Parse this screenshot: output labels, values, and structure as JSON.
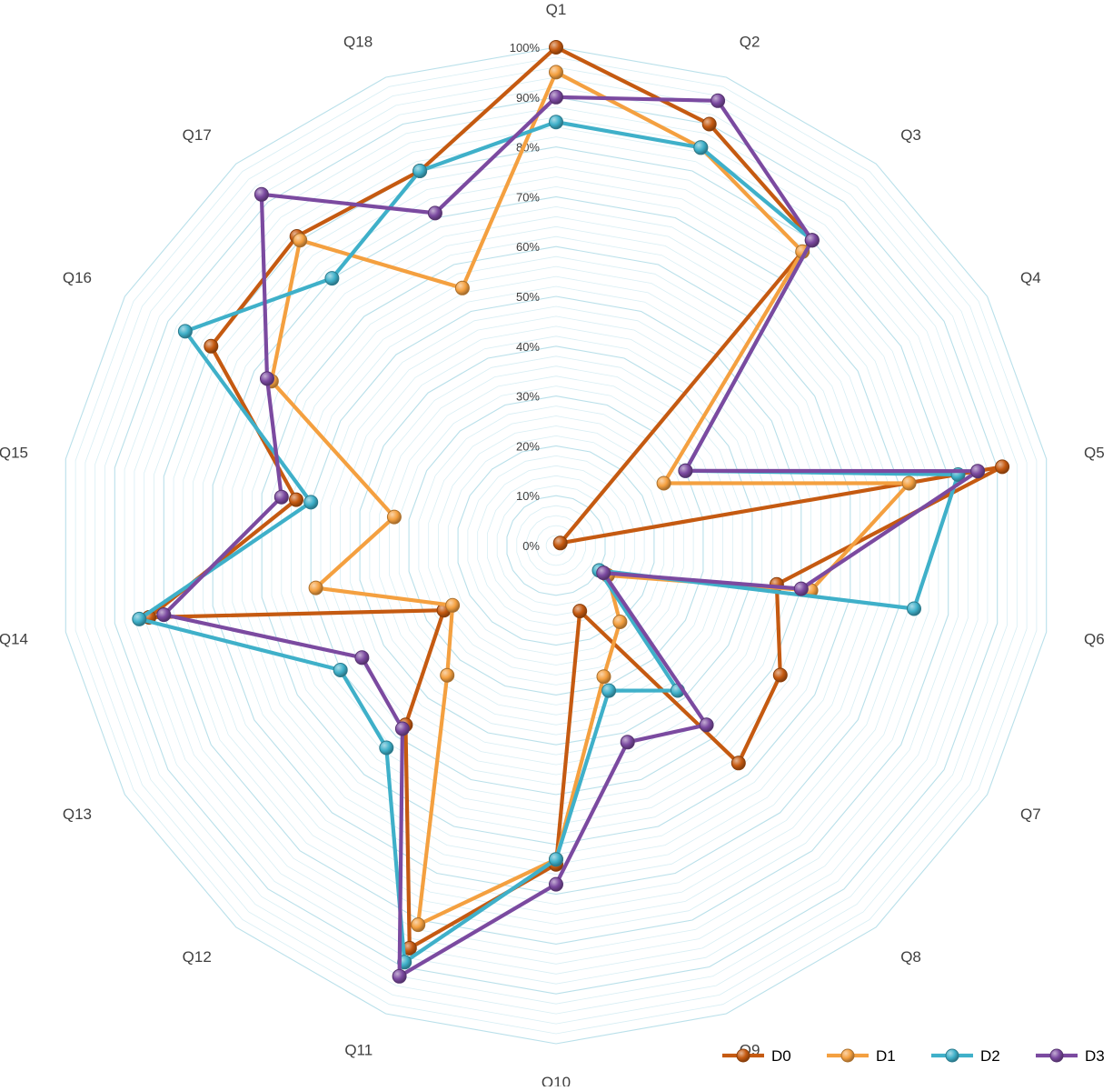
{
  "chart_data": {
    "type": "radar",
    "categories": [
      "Q1",
      "Q2",
      "Q3",
      "Q4",
      "Q5",
      "Q6",
      "Q7",
      "Q8",
      "Q9",
      "Q10",
      "Q11",
      "Q12",
      "Q13",
      "Q14",
      "Q15",
      "Q16",
      "Q17",
      "Q18"
    ],
    "ticks": [
      "0%",
      "10%",
      "20%",
      "30%",
      "40%",
      "50%",
      "60%",
      "70%",
      "80%",
      "90%",
      "100%"
    ],
    "ylim": [
      0,
      100
    ],
    "minor_grid_step": 2,
    "grid": true,
    "legend_position": "bottom-right",
    "series": [
      {
        "name": "D0",
        "color": "#c55a11",
        "values": [
          100,
          90,
          80,
          1,
          91,
          45,
          52,
          57,
          14,
          64,
          86,
          47,
          26,
          83,
          53,
          80,
          81,
          80
        ]
      },
      {
        "name": "D1",
        "color": "#f4a040",
        "values": [
          95,
          85,
          77,
          25,
          72,
          52,
          12,
          20,
          28,
          63,
          81,
          34,
          24,
          49,
          33,
          66,
          80,
          55
        ]
      },
      {
        "name": "D2",
        "color": "#3fb0c9",
        "values": [
          85,
          85,
          80,
          30,
          82,
          73,
          10,
          38,
          31,
          63,
          89,
          53,
          50,
          85,
          50,
          86,
          70,
          80
        ]
      },
      {
        "name": "D3",
        "color": "#7b4aa0",
        "values": [
          90,
          95,
          80,
          30,
          86,
          50,
          11,
          47,
          42,
          68,
          92,
          48,
          45,
          80,
          56,
          67,
          92,
          71
        ]
      }
    ]
  }
}
